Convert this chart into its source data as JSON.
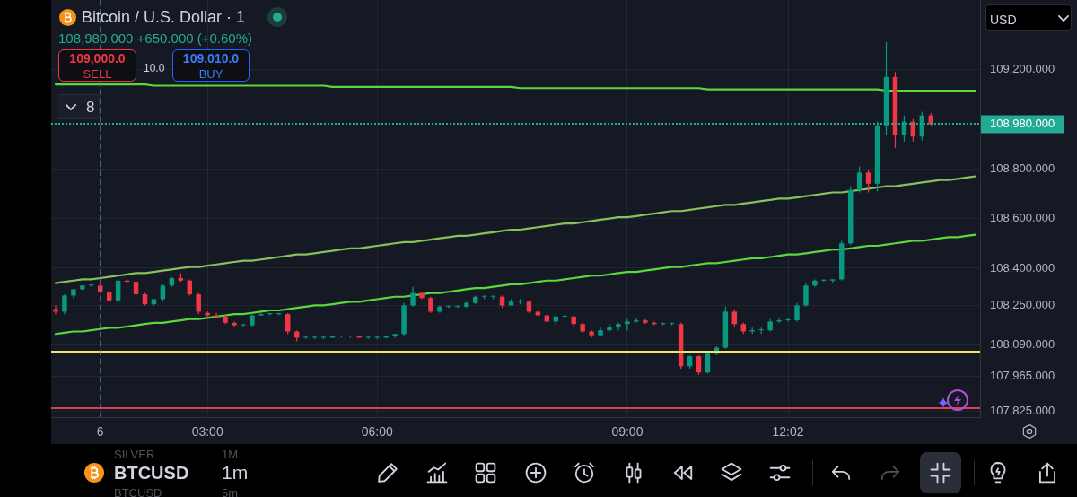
{
  "chart_data": {
    "type": "candlestick",
    "title": "Bitcoin / U.S. Dollar · 1",
    "subtitle": "108,980.000 +650.000 (+0.60%)",
    "annotations": [
      "109,000.0",
      "SELL",
      "10.0",
      "109,010.0",
      "BUY",
      "8",
      "USD",
      "SILVER",
      "1M",
      "BTCUSD",
      "1m",
      "BTCUSD",
      "5m"
    ],
    "categories": [
      null,
      null,
      null,
      null,
      null,
      "6",
      null,
      null,
      null,
      null,
      null,
      null,
      null,
      null,
      null,
      null,
      null,
      "03:00",
      null,
      null,
      null,
      null,
      null,
      null,
      null,
      null,
      null,
      null,
      null,
      null,
      null,
      null,
      null,
      null,
      null,
      null,
      "06:00",
      null,
      null,
      null,
      null,
      null,
      null,
      null,
      null,
      null,
      null,
      null,
      null,
      null,
      null,
      null,
      null,
      null,
      null,
      null,
      null,
      null,
      null,
      null,
      null,
      null,
      null,
      null,
      "09:00",
      null,
      null,
      null,
      null,
      null,
      null,
      null,
      null,
      null,
      null,
      null,
      null,
      null,
      null,
      null,
      null,
      null,
      "12:02",
      null,
      null,
      null,
      null,
      null,
      null,
      null,
      null,
      null,
      null,
      null,
      null,
      null,
      null,
      null,
      null,
      null,
      null,
      null,
      null,
      null
    ],
    "ohlc": [
      [
        108235,
        108250,
        108215,
        108225
      ],
      [
        108225,
        108295,
        108215,
        108290
      ],
      [
        108290,
        108315,
        108280,
        108315
      ],
      [
        108315,
        108330,
        108310,
        108330
      ],
      [
        108330,
        108335,
        108325,
        108330
      ],
      [
        108330,
        108340,
        108300,
        108305
      ],
      [
        108305,
        108310,
        108265,
        108270
      ],
      [
        108270,
        108355,
        108265,
        108350
      ],
      [
        108350,
        108355,
        108340,
        108345
      ],
      [
        108345,
        108350,
        108290,
        108295
      ],
      [
        108295,
        108300,
        108250,
        108255
      ],
      [
        108255,
        108275,
        108250,
        108275
      ],
      [
        108275,
        108335,
        108265,
        108330
      ],
      [
        108330,
        108365,
        108325,
        108360
      ],
      [
        108360,
        108380,
        108345,
        108350
      ],
      [
        108350,
        108355,
        108290,
        108295
      ],
      [
        108295,
        108300,
        108215,
        108225
      ],
      [
        108220,
        108225,
        108205,
        108210
      ],
      [
        108210,
        108220,
        108200,
        108205
      ],
      [
        108205,
        108210,
        108175,
        108180
      ],
      [
        108180,
        108185,
        108165,
        108170
      ],
      [
        108170,
        108175,
        108165,
        108170
      ],
      [
        108170,
        108215,
        108165,
        108210
      ],
      [
        108210,
        108220,
        108210,
        108215
      ],
      [
        108215,
        108220,
        108210,
        108215
      ],
      [
        108215,
        108220,
        108210,
        108215
      ],
      [
        108215,
        108220,
        108135,
        108145
      ],
      [
        108145,
        108150,
        108105,
        108120
      ],
      [
        108120,
        108130,
        108115,
        108120
      ],
      [
        108120,
        108125,
        108115,
        108120
      ],
      [
        108120,
        108125,
        108115,
        108120
      ],
      [
        108120,
        108130,
        108120,
        108125
      ],
      [
        108125,
        108130,
        108120,
        108125
      ],
      [
        108125,
        108130,
        108120,
        108125
      ],
      [
        108125,
        108130,
        108120,
        108120
      ],
      [
        108120,
        108130,
        108115,
        108120
      ],
      [
        108120,
        108125,
        108115,
        108120
      ],
      [
        108120,
        108130,
        108120,
        108125
      ],
      [
        108125,
        108135,
        108120,
        108135
      ],
      [
        108135,
        108260,
        108125,
        108250
      ],
      [
        108250,
        108325,
        108245,
        108300
      ],
      [
        108300,
        108305,
        108275,
        108280
      ],
      [
        108280,
        108285,
        108220,
        108225
      ],
      [
        108225,
        108250,
        108220,
        108245
      ],
      [
        108245,
        108250,
        108240,
        108245
      ],
      [
        108245,
        108250,
        108240,
        108245
      ],
      [
        108245,
        108265,
        108240,
        108260
      ],
      [
        108260,
        108290,
        108255,
        108285
      ],
      [
        108285,
        108290,
        108275,
        108285
      ],
      [
        108285,
        108290,
        108275,
        108285
      ],
      [
        108285,
        108290,
        108240,
        108250
      ],
      [
        108250,
        108275,
        108250,
        108265
      ],
      [
        108265,
        108275,
        108255,
        108265
      ],
      [
        108265,
        108270,
        108220,
        108225
      ],
      [
        108225,
        108230,
        108205,
        108210
      ],
      [
        108210,
        108215,
        108180,
        108185
      ],
      [
        108185,
        108210,
        108170,
        108205
      ],
      [
        108205,
        108210,
        108200,
        108205
      ],
      [
        108205,
        108210,
        108165,
        108175
      ],
      [
        108175,
        108180,
        108140,
        108145
      ],
      [
        108145,
        108150,
        108120,
        108130
      ],
      [
        108130,
        108160,
        108125,
        108150
      ],
      [
        108150,
        108175,
        108145,
        108165
      ],
      [
        108165,
        108180,
        108150,
        108175
      ],
      [
        108175,
        108195,
        108150,
        108185
      ],
      [
        108185,
        108200,
        108180,
        108190
      ],
      [
        108190,
        108195,
        108175,
        108180
      ],
      [
        108180,
        108185,
        108170,
        108175
      ],
      [
        108175,
        108180,
        108170,
        108175
      ],
      [
        108175,
        108180,
        108170,
        108175
      ],
      [
        108175,
        108180,
        107995,
        108005
      ],
      [
        108005,
        108050,
        107995,
        108045
      ],
      [
        108045,
        108050,
        107970,
        107980
      ],
      [
        107980,
        108060,
        107975,
        108055
      ],
      [
        108055,
        108085,
        108050,
        108080
      ],
      [
        108080,
        108245,
        108075,
        108225
      ],
      [
        108225,
        108235,
        108165,
        108175
      ],
      [
        108175,
        108180,
        108135,
        108145
      ],
      [
        108145,
        108160,
        108135,
        108150
      ],
      [
        108150,
        108160,
        108135,
        108150
      ],
      [
        108150,
        108195,
        108145,
        108185
      ],
      [
        108185,
        108200,
        108180,
        108190
      ],
      [
        108190,
        108200,
        108185,
        108190
      ],
      [
        108190,
        108260,
        108185,
        108250
      ],
      [
        108250,
        108340,
        108245,
        108330
      ],
      [
        108330,
        108355,
        108325,
        108350
      ],
      [
        108350,
        108355,
        108345,
        108350
      ],
      [
        108350,
        108355,
        108340,
        108355
      ],
      [
        108355,
        108510,
        108350,
        108500
      ],
      [
        108500,
        108730,
        108495,
        108715
      ],
      [
        108715,
        108810,
        108705,
        108785
      ],
      [
        108785,
        108795,
        108705,
        108740
      ],
      [
        108740,
        108990,
        108710,
        108975
      ],
      [
        108975,
        109310,
        108935,
        109170
      ],
      [
        109170,
        109190,
        108885,
        108935
      ],
      [
        108935,
        109015,
        108910,
        108990
      ],
      [
        108990,
        109000,
        108910,
        108930
      ],
      [
        108930,
        109030,
        108915,
        109015
      ],
      [
        109015,
        109025,
        108970,
        108980
      ],
      null,
      null,
      null,
      null,
      null
    ],
    "colors": [
      "#f23645",
      "#089981",
      "#089981",
      "#089981",
      "#089981",
      "#f23645",
      "#f23645",
      "#089981",
      "#f23645",
      "#f23645",
      "#f23645",
      "#089981",
      "#089981",
      "#089981",
      "#f23645",
      "#f23645",
      "#f23645",
      "#f23645",
      "#f23645",
      "#f23645",
      "#f23645",
      "#089981",
      "#089981",
      "#089981",
      "#089981",
      "#089981",
      "#f23645",
      "#f23645",
      "#089981",
      "#089981",
      "#089981",
      "#089981",
      "#089981",
      "#089981",
      "#f23645",
      "#089981",
      "#089981",
      "#089981",
      "#089981",
      "#089981",
      "#089981",
      "#f23645",
      "#f23645",
      "#089981",
      "#089981",
      "#089981",
      "#089981",
      "#089981",
      "#089981",
      "#089981",
      "#f23645",
      "#089981",
      "#089981",
      "#f23645",
      "#f23645",
      "#f23645",
      "#089981",
      "#089981",
      "#f23645",
      "#f23645",
      "#f23645",
      "#089981",
      "#089981",
      "#089981",
      "#089981",
      "#089981",
      "#f23645",
      "#f23645",
      "#089981",
      "#089981",
      "#f23645",
      "#089981",
      "#f23645",
      "#089981",
      "#089981",
      "#089981",
      "#f23645",
      "#f23645",
      "#089981",
      "#089981",
      "#089981",
      "#089981",
      "#089981",
      "#089981",
      "#089981",
      "#089981",
      "#089981",
      "#089981",
      "#089981",
      "#089981",
      "#089981",
      "#f23645",
      "#089981",
      "#089981",
      "#f23645",
      "#089981",
      "#f23645",
      "#089981",
      "#f23645",
      null,
      null,
      null,
      null,
      null
    ],
    "series": [
      {
        "type": "line",
        "color": "#5bd83c",
        "values": [
          109140,
          109140,
          109140,
          109140,
          109140,
          109140,
          109140,
          109140,
          109140,
          109140,
          109140,
          109135,
          109135,
          109135,
          109135,
          109135,
          109135,
          109135,
          109135,
          109135,
          109135,
          109135,
          109135,
          109135,
          109135,
          109135,
          109135,
          109135,
          109135,
          109135,
          109135,
          109130,
          109130,
          109130,
          109130,
          109130,
          109130,
          109130,
          109130,
          109130,
          109130,
          109130,
          109130,
          109130,
          109130,
          109130,
          109130,
          109130,
          109130,
          109130,
          109130,
          109130,
          109125,
          109125,
          109125,
          109125,
          109125,
          109125,
          109125,
          109125,
          109125,
          109125,
          109125,
          109125,
          109125,
          109125,
          109125,
          109125,
          109125,
          109125,
          109125,
          109125,
          109125,
          109120,
          109120,
          109120,
          109120,
          109120,
          109120,
          109120,
          109120,
          109120,
          109120,
          109120,
          109120,
          109120,
          109120,
          109120,
          109120,
          109120,
          109120,
          109120,
          109120,
          109115,
          109115,
          109115,
          109115,
          109115,
          109115,
          109115,
          109115,
          109115,
          109115,
          109115
        ]
      },
      {
        "type": "line",
        "color": "#86c25a",
        "values": [
          108340,
          108345,
          108350,
          108355,
          108355,
          108360,
          108365,
          108370,
          108375,
          108380,
          108380,
          108385,
          108390,
          108395,
          108400,
          108405,
          108405,
          108410,
          108415,
          108420,
          108425,
          108430,
          108430,
          108435,
          108440,
          108445,
          108450,
          108455,
          108455,
          108460,
          108465,
          108470,
          108475,
          108480,
          108480,
          108485,
          108490,
          108495,
          108500,
          108505,
          108505,
          108510,
          108515,
          108520,
          108525,
          108530,
          108530,
          108535,
          108540,
          108545,
          108550,
          108555,
          108555,
          108560,
          108565,
          108570,
          108575,
          108580,
          108580,
          108585,
          108590,
          108595,
          108600,
          108605,
          108605,
          108610,
          108615,
          108620,
          108625,
          108630,
          108630,
          108635,
          108640,
          108645,
          108650,
          108655,
          108655,
          108660,
          108665,
          108670,
          108675,
          108680,
          108680,
          108685,
          108690,
          108695,
          108700,
          108705,
          108705,
          108710,
          108715,
          108720,
          108725,
          108730,
          108730,
          108735,
          108740,
          108745,
          108750,
          108755,
          108755,
          108760,
          108765,
          108770
        ]
      },
      {
        "type": "line",
        "color": "#5bd83c",
        "values": [
          108135,
          108140,
          108145,
          108145,
          108150,
          108155,
          108160,
          108160,
          108165,
          108170,
          108175,
          108180,
          108180,
          108185,
          108190,
          108195,
          108195,
          108200,
          108205,
          108210,
          108215,
          108215,
          108220,
          108225,
          108230,
          108230,
          108235,
          108240,
          108245,
          108250,
          108250,
          108255,
          108260,
          108265,
          108265,
          108270,
          108275,
          108280,
          108285,
          108285,
          108290,
          108295,
          108300,
          108300,
          108305,
          108310,
          108315,
          108320,
          108320,
          108325,
          108330,
          108335,
          108335,
          108340,
          108345,
          108350,
          108350,
          108355,
          108360,
          108365,
          108370,
          108370,
          108375,
          108380,
          108385,
          108385,
          108390,
          108395,
          108400,
          108405,
          108405,
          108410,
          108415,
          108420,
          108420,
          108425,
          108430,
          108435,
          108440,
          108440,
          108445,
          108450,
          108455,
          108455,
          108460,
          108465,
          108470,
          108475,
          108475,
          108480,
          108485,
          108490,
          108490,
          108495,
          108500,
          108505,
          108510,
          108510,
          108515,
          108520,
          108525,
          108525,
          108530,
          108535
        ]
      }
    ],
    "ylim": [
      107800,
      109480
    ],
    "yticks": [
      {
        "value": 107825,
        "label": "107,825.000"
      },
      {
        "value": 107965,
        "label": "107,965.000"
      },
      {
        "value": 108090,
        "label": "108,090.000"
      },
      {
        "value": 108250,
        "label": "108,250.000"
      },
      {
        "value": 108400,
        "label": "108,400.000"
      },
      {
        "value": 108600,
        "label": "108,600.000"
      },
      {
        "value": 108800,
        "label": "108,800.000"
      },
      {
        "value": 109200,
        "label": "109,200.000"
      }
    ],
    "ref_lines": [
      {
        "axis": "y",
        "value": 108065,
        "color": "#f2e36b"
      },
      {
        "axis": "y",
        "value": 107835,
        "color": "#d9434e"
      },
      {
        "axis": "y",
        "value": 108980,
        "label": "108,980.000",
        "color": "#22ab94",
        "line_style": "dotted"
      },
      {
        "axis": "x",
        "value": "6",
        "color": "#4f79c9",
        "line_style": "dashed"
      }
    ],
    "grid": true
  }
}
